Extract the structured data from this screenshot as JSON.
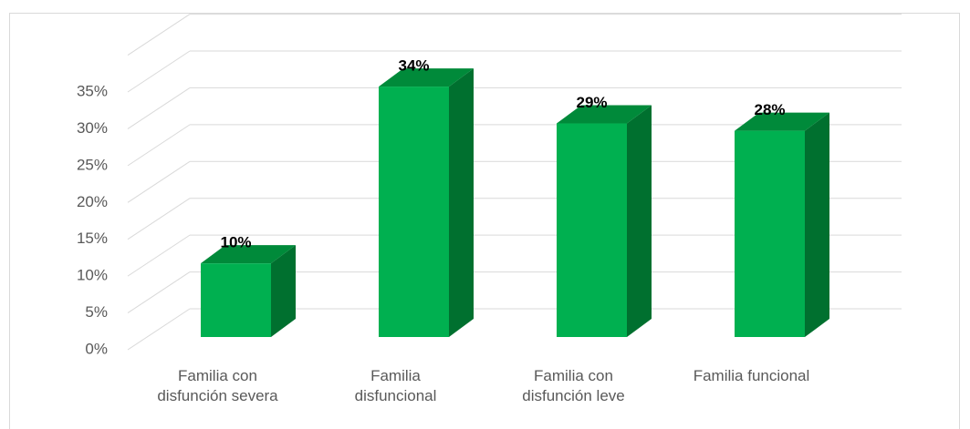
{
  "chart_data": {
    "type": "bar3d",
    "categories": [
      "Familia con disfunción severa",
      "Familia disfuncional",
      "Familia con disfunción leve",
      "Familia funcional"
    ],
    "values": [
      10,
      34,
      29,
      28
    ],
    "value_labels": [
      "10%",
      "34%",
      "29%",
      "28%"
    ],
    "color": "#00b050",
    "ylim": [
      0,
      40
    ],
    "yticks": [
      {
        "value": 0,
        "label": "0%"
      },
      {
        "value": 5,
        "label": "5%"
      },
      {
        "value": 10,
        "label": "10%"
      },
      {
        "value": 15,
        "label": "15%"
      },
      {
        "value": 20,
        "label": "20%"
      },
      {
        "value": 25,
        "label": "25%"
      },
      {
        "value": 30,
        "label": "30%"
      },
      {
        "value": 35,
        "label": "35%"
      }
    ],
    "grid": true
  }
}
